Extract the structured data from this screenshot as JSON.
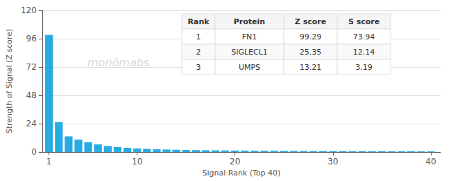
{
  "chart_data": {
    "type": "bar",
    "x": [
      1,
      2,
      3,
      4,
      5,
      6,
      7,
      8,
      9,
      10,
      11,
      12,
      13,
      14,
      15,
      16,
      17,
      18,
      19,
      20,
      21,
      22,
      23,
      24,
      25,
      26,
      27,
      28,
      29,
      30,
      31,
      32,
      33,
      34,
      35,
      36,
      37,
      38,
      39,
      40
    ],
    "values": [
      99.29,
      25.35,
      13.21,
      10.5,
      8.2,
      6.5,
      5.1,
      4.2,
      3.5,
      3.0,
      2.6,
      2.3,
      2.1,
      1.9,
      1.75,
      1.6,
      1.5,
      1.4,
      1.3,
      1.2,
      1.15,
      1.1,
      1.05,
      1.0,
      0.95,
      0.9,
      0.85,
      0.82,
      0.79,
      0.76,
      0.73,
      0.7,
      0.67,
      0.65,
      0.63,
      0.61,
      0.59,
      0.57,
      0.55,
      0.53
    ],
    "color": "#29ABE2",
    "xlabel": "Signal Rank (Top 40)",
    "ylabel": "Strength of Signal (Z score)",
    "xlim": [
      0.3,
      41
    ],
    "xticks": [
      1,
      10,
      20,
      30,
      40
    ],
    "ylim": [
      0,
      120
    ],
    "yticks": [
      0,
      24,
      48,
      72,
      96,
      120
    ],
    "grid": true,
    "annotations": [
      "monômabs"
    ],
    "table": {
      "columns": [
        "Rank",
        "Protein",
        "Z score",
        "S score"
      ],
      "rows": [
        [
          "1",
          "FN1",
          "99.29",
          "73.94"
        ],
        [
          "2",
          "SIGLECL1",
          "25.35",
          "12.14"
        ],
        [
          "3",
          "UMPS",
          "13.21",
          "3.19"
        ]
      ]
    }
  }
}
